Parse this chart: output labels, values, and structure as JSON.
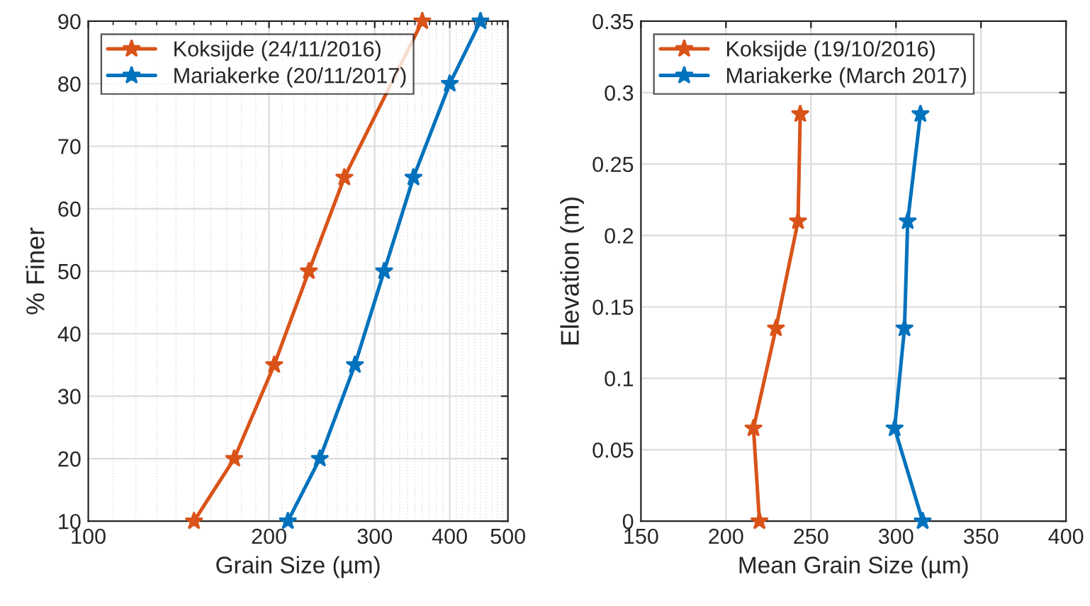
{
  "chart_data": [
    {
      "type": "line",
      "xlabel": "Grain Size (µm)",
      "ylabel": "% Finer",
      "log": "x",
      "grid": true,
      "legend": "top left",
      "marker": "star",
      "line_style": "solid",
      "xlim": [
        100,
        500
      ],
      "xticks": [
        100,
        200,
        300,
        400,
        500
      ],
      "ylim": [
        10,
        90
      ],
      "yticks": [
        10,
        20,
        30,
        40,
        50,
        60,
        70,
        80,
        90
      ],
      "series": [
        {
          "name": "Koksijde (24/11/2016)",
          "color": "#d95319",
          "x": [
            150,
            175,
            204,
            233,
            267,
            360
          ],
          "values": [
            10,
            20,
            35,
            50,
            65,
            90
          ]
        },
        {
          "name": "Mariakerke (20/11/2017)",
          "color": "#0072bd",
          "x": [
            215,
            243,
            278,
            311,
            348,
            400,
            450
          ],
          "values": [
            10,
            20,
            35,
            50,
            65,
            80,
            90
          ]
        }
      ]
    },
    {
      "type": "line",
      "xlabel": "Mean Grain Size (µm)",
      "ylabel": "Elevation (m)",
      "grid": true,
      "legend": "top left",
      "marker": "star",
      "line_style": "solid",
      "xlim": [
        150,
        400
      ],
      "xticks": [
        150,
        200,
        250,
        300,
        350,
        400
      ],
      "ylim": [
        0,
        0.35
      ],
      "yticks": [
        0,
        0.05,
        0.1,
        0.15,
        0.2,
        0.25,
        0.3,
        0.35
      ],
      "series": [
        {
          "name": "Koksijde (19/10/2016)",
          "color": "#d95319",
          "x": [
            219.7,
            216.2,
            229.4,
            242.4,
            243.7
          ],
          "values": [
            0,
            0.065,
            0.135,
            0.21,
            0.285
          ]
        },
        {
          "name": "Mariakerke (March 2017)",
          "color": "#0072bd",
          "x": [
            315.7,
            299.2,
            305,
            306.9,
            314.4
          ],
          "values": [
            0,
            0.065,
            0.135,
            0.21,
            0.285
          ]
        }
      ]
    }
  ]
}
